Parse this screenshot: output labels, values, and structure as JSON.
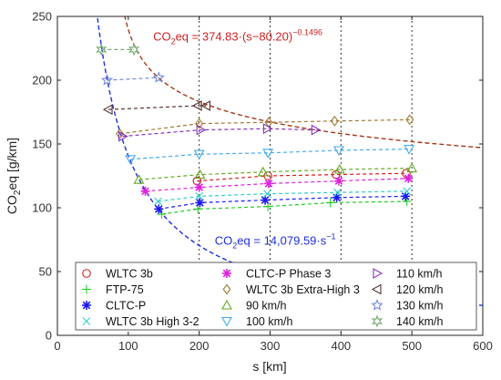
{
  "chart_data": {
    "type": "scatter",
    "xlabel": "s [km]",
    "ylabel_main": "CO",
    "ylabel_sub": "2",
    "ylabel_rest": "eq [g/km]",
    "xlim": [
      0,
      600
    ],
    "ylim": [
      0,
      250
    ],
    "xticks": [
      0,
      100,
      200,
      300,
      400,
      500,
      600
    ],
    "yticks": [
      0,
      50,
      100,
      150,
      200,
      250
    ],
    "grid": false,
    "vertical_reference_lines_x": [
      200,
      300,
      400,
      500
    ],
    "legend_position": "bottom",
    "annotations": [
      {
        "id": "red",
        "pre": "CO",
        "sub": "2",
        "mid": "eq = 374.83·(s−80.20)",
        "sup": "−0.1496",
        "color": "#cc2222",
        "x": 135,
        "y": 231
      },
      {
        "id": "blue",
        "pre": "CO",
        "sub": "2",
        "mid": "eq = 14,079.59·s",
        "sup": "−1",
        "color": "#1e2fd8",
        "x": 222,
        "y": 71
      }
    ],
    "curves": [
      {
        "name": "red-fit",
        "color": "#a33a1a",
        "kind": "power",
        "a": 374.83,
        "s0": 80.2,
        "b": -0.1496,
        "xmin": 81.0,
        "xmax": 600
      },
      {
        "name": "blue-fit",
        "color": "#1e2fd8",
        "kind": "inverse",
        "a": 14079.59,
        "xmin": 53,
        "xmax": 600
      }
    ],
    "series": [
      {
        "name": "WLTC 3b",
        "marker": "circle",
        "color": "#cc2222",
        "points": [
          [
            197,
            121
          ],
          [
            297,
            125
          ],
          [
            393,
            126
          ],
          [
            492,
            127
          ]
        ]
      },
      {
        "name": "FTP-75",
        "marker": "plus",
        "color": "#22cc22",
        "points": [
          [
            147,
            95
          ],
          [
            198,
            99
          ],
          [
            297,
            101
          ],
          [
            385,
            104
          ],
          [
            493,
            105
          ]
        ]
      },
      {
        "name": "CLTC-P",
        "marker": "asterisk",
        "color": "#1a1aee",
        "points": [
          [
            143,
            99
          ],
          [
            201,
            104
          ],
          [
            293,
            106
          ],
          [
            394,
            108
          ],
          [
            491,
            109
          ]
        ]
      },
      {
        "name": "WLTC 3b High 3-2",
        "marker": "x",
        "color": "#33cccc",
        "points": [
          [
            142,
            105
          ],
          [
            200,
            109
          ],
          [
            296,
            111
          ],
          [
            395,
            112
          ],
          [
            493,
            113
          ]
        ]
      },
      {
        "name": "CLTC-P Phase 3",
        "marker": "asterisk",
        "color": "#dd22dd",
        "points": [
          [
            124,
            113
          ],
          [
            200,
            116
          ],
          [
            298,
            119
          ],
          [
            397,
            121
          ],
          [
            495,
            123
          ]
        ]
      },
      {
        "name": "WLTC 3b Extra-High 3",
        "marker": "diamond",
        "color": "#a0782e",
        "points": [
          [
            88,
            158
          ],
          [
            200,
            166
          ],
          [
            298,
            167
          ],
          [
            391,
            168
          ],
          [
            497,
            169
          ]
        ]
      },
      {
        "name": "90 km/h",
        "marker": "triangle-up",
        "color": "#66aa22",
        "points": [
          [
            115,
            122
          ],
          [
            201,
            126
          ],
          [
            290,
            128
          ],
          [
            398,
            130
          ],
          [
            500,
            131
          ]
        ]
      },
      {
        "name": "100 km/h",
        "marker": "triangle-down",
        "color": "#44aaee",
        "points": [
          [
            103,
            138
          ],
          [
            200,
            142
          ],
          [
            297,
            143
          ],
          [
            397,
            145
          ],
          [
            496,
            146
          ]
        ]
      },
      {
        "name": "110 km/h",
        "marker": "triangle-right",
        "color": "#8833bb",
        "points": [
          [
            92,
            156
          ],
          [
            202,
            161
          ],
          [
            296,
            162
          ],
          [
            364,
            161
          ]
        ]
      },
      {
        "name": "120 km/h",
        "marker": "triangle-left",
        "color": "#553333",
        "points": [
          [
            72,
            177
          ],
          [
            198,
            180
          ],
          [
            210,
            180
          ]
        ]
      },
      {
        "name": "130 km/h",
        "marker": "star5",
        "color": "#7788dd",
        "points": [
          [
            70,
            200
          ],
          [
            143,
            202
          ]
        ]
      },
      {
        "name": "140 km/h",
        "marker": "star6",
        "color": "#77aa77",
        "points": [
          [
            62,
            224
          ],
          [
            108,
            224
          ]
        ]
      }
    ]
  }
}
